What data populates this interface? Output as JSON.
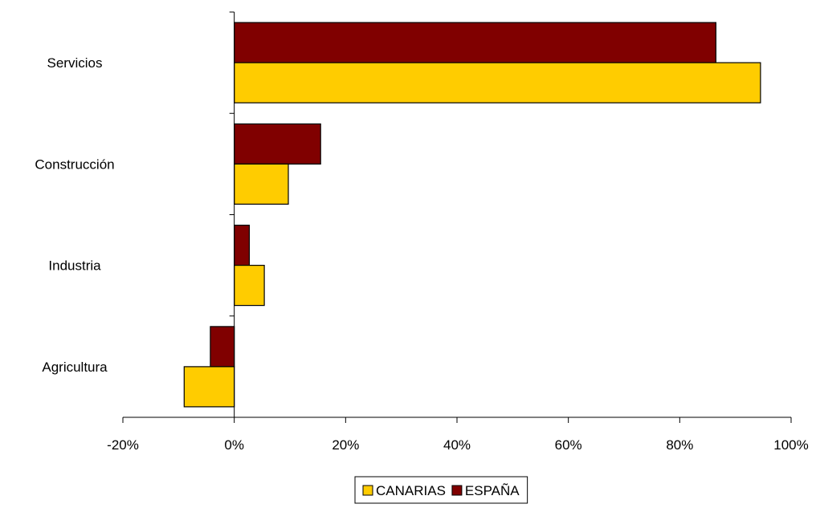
{
  "chart_data": {
    "type": "bar",
    "orientation": "horizontal",
    "categories": [
      "Servicios",
      "Construcción",
      "Industria",
      "Agricultura"
    ],
    "series": [
      {
        "name": "ESPAÑA",
        "color": "#800000",
        "values": [
          86.5,
          15.5,
          2.7,
          -4.3
        ]
      },
      {
        "name": "CANARIAS",
        "color": "#FFCC00",
        "values": [
          94.5,
          9.7,
          5.4,
          -9.0
        ]
      }
    ],
    "xlim": [
      -20,
      100
    ],
    "xticks": [
      -20,
      0,
      20,
      40,
      60,
      80,
      100
    ],
    "xtick_labels": [
      "-20%",
      "0%",
      "20%",
      "40%",
      "60%",
      "80%",
      "100%"
    ],
    "legend": {
      "placement": "bottom-center",
      "entries": [
        {
          "label": "CANARIAS",
          "color": "#FFCC00"
        },
        {
          "label": "ESPAÑA",
          "color": "#800000"
        }
      ]
    },
    "grid": false,
    "title": "",
    "xlabel": "",
    "ylabel": ""
  }
}
